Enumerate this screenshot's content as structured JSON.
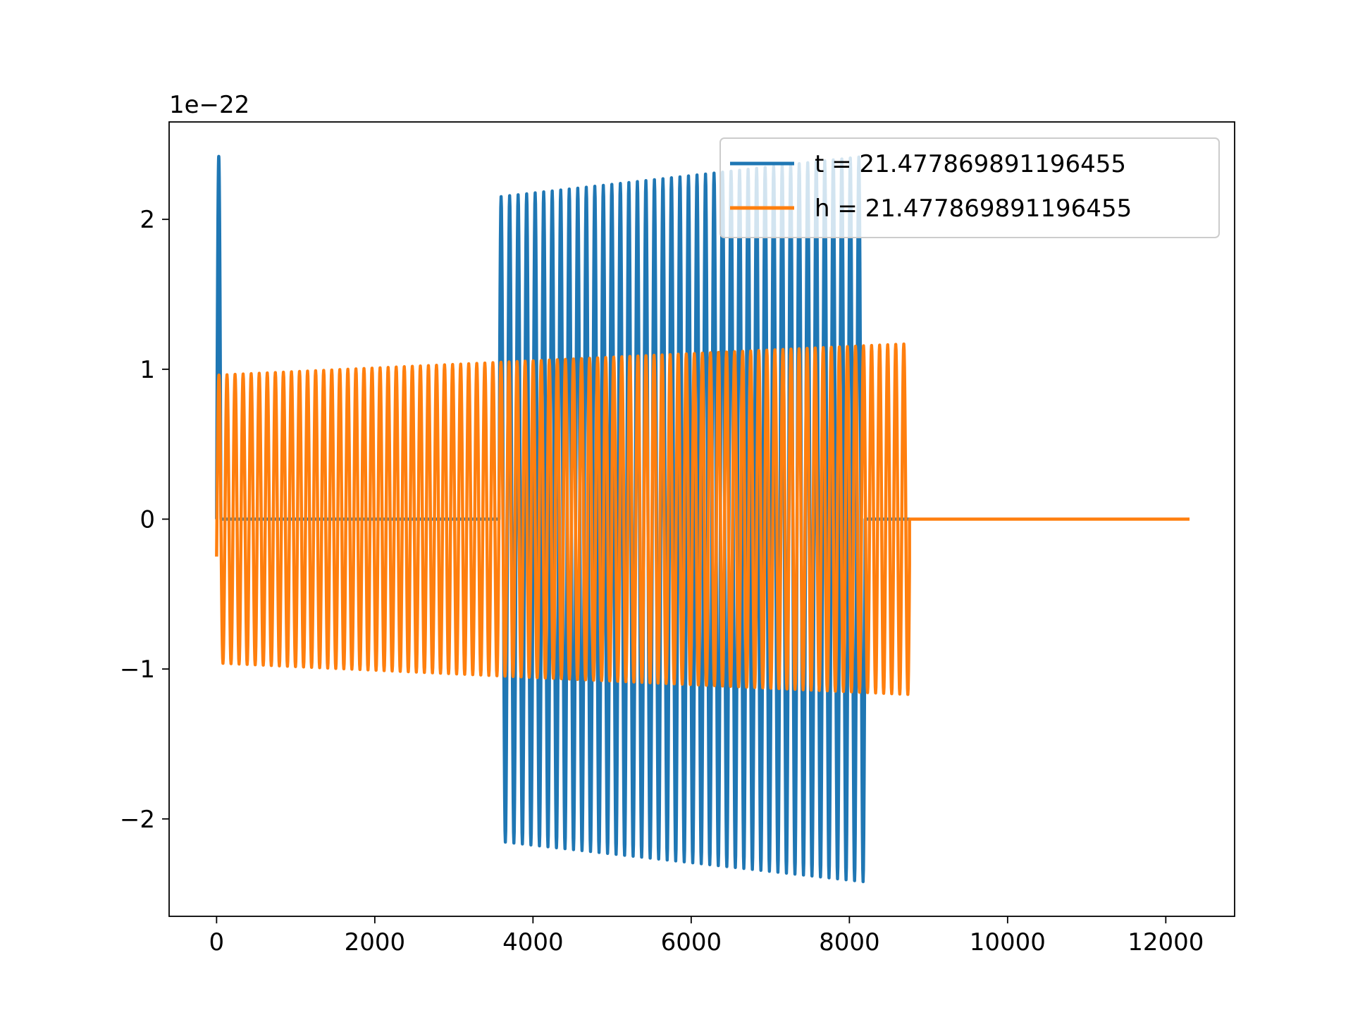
{
  "colors": {
    "series_t": "#1f77b4",
    "series_h": "#ff7f0e",
    "axes": "#000000",
    "background": "#ffffff"
  },
  "chart_data": {
    "type": "line",
    "title": "",
    "xlabel": "",
    "ylabel": "",
    "y_offset_label": "1e−22",
    "xlim": [
      -600,
      12870
    ],
    "ylim": [
      -2.65,
      2.65
    ],
    "xticks": [
      0,
      2000,
      4000,
      6000,
      8000,
      10000,
      12000
    ],
    "xtick_labels": [
      "0",
      "2000",
      "4000",
      "6000",
      "8000",
      "10000",
      "12000"
    ],
    "yticks": [
      -2,
      -1,
      0,
      1,
      2
    ],
    "ytick_labels": [
      "−2",
      "−1",
      "0",
      "1",
      "2"
    ],
    "grid": false,
    "legend_position": "upper right",
    "series": [
      {
        "name": "t = 21.477869891196455",
        "color": "#1f77b4",
        "segments": [
          {
            "kind": "oscillation",
            "x_start": 0,
            "x_end": 55,
            "cycles": 0.5,
            "amp_start": 2.42,
            "amp_end": 2.42
          },
          {
            "kind": "flat",
            "x_start": 55,
            "x_end": 3570,
            "value": 0
          },
          {
            "kind": "oscillation",
            "x_start": 3570,
            "x_end": 8200,
            "cycles": 43,
            "amp_start": 2.15,
            "amp_end": 2.42
          },
          {
            "kind": "flat",
            "x_start": 8200,
            "x_end": 8760,
            "value": 0
          }
        ]
      },
      {
        "name": "h = 21.477869891196455",
        "color": "#ff7f0e",
        "segments": [
          {
            "kind": "oscillation",
            "x_start": 0,
            "x_end": 8760,
            "cycles": 86,
            "amp_start": 0.96,
            "amp_end": 1.17,
            "start_value": -0.25
          },
          {
            "kind": "flat",
            "x_start": 8760,
            "x_end": 12300,
            "value": 0
          }
        ]
      }
    ]
  }
}
